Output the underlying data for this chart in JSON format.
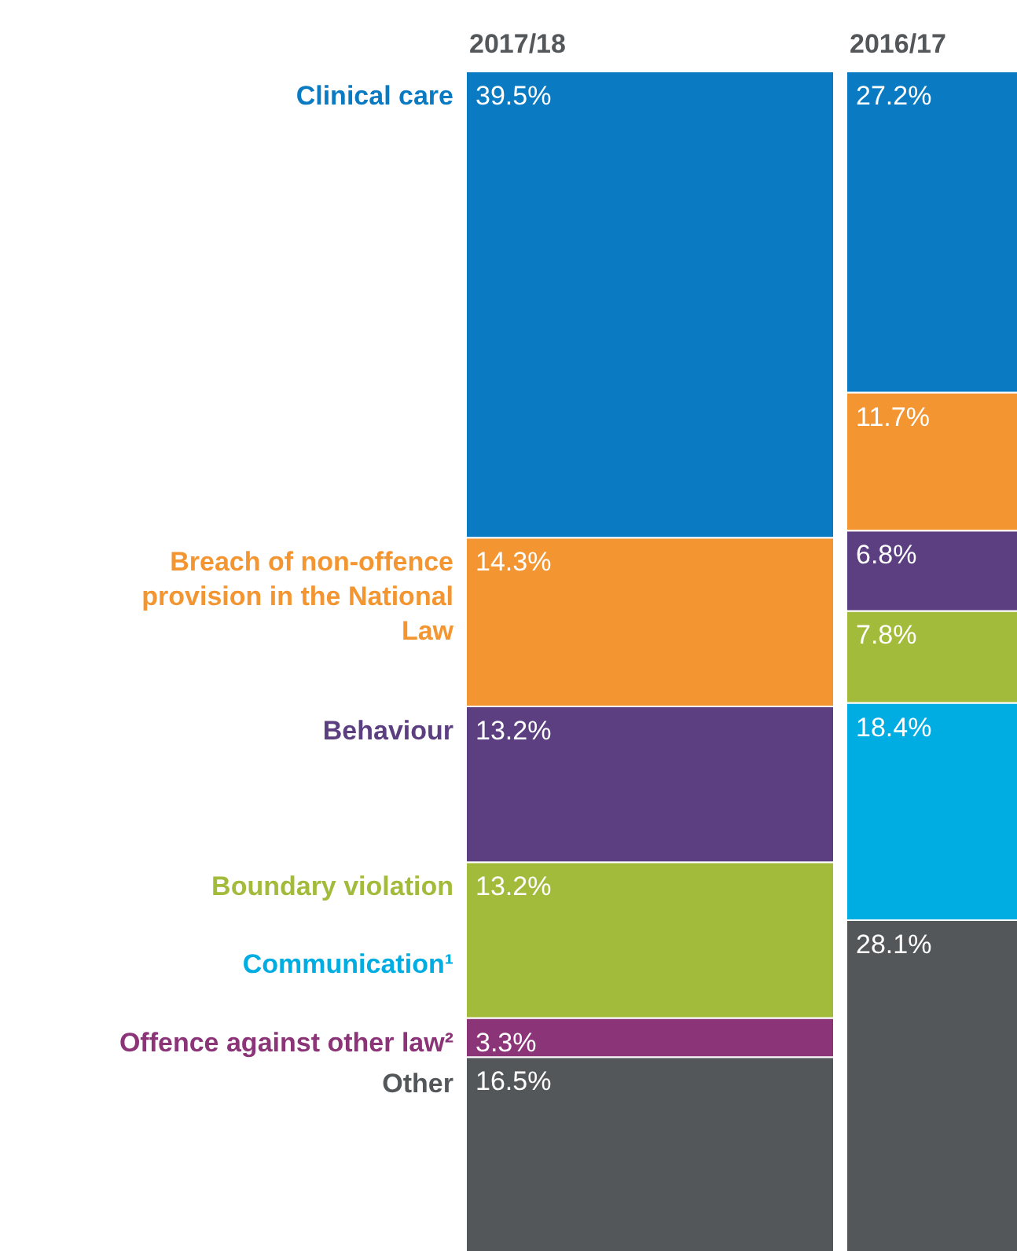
{
  "chart_data": {
    "type": "bar",
    "stacked": true,
    "categories": [
      "2017/18",
      "2016/17"
    ],
    "series": [
      {
        "name": "Other",
        "color": "#54575a",
        "values": [
          16.5,
          28.1
        ],
        "value_labels": [
          "16.5%",
          "28.1%"
        ]
      },
      {
        "name": "Offence against other law²",
        "color": "#8b3478",
        "values": [
          3.3,
          null
        ],
        "value_labels": [
          "3.3%",
          null
        ]
      },
      {
        "name": "Communication¹",
        "color": "#00ade2",
        "values": [
          null,
          18.4
        ],
        "value_labels": [
          null,
          "18.4%"
        ]
      },
      {
        "name": "Boundary violation",
        "color": "#a3bb3b",
        "values": [
          13.2,
          7.8
        ],
        "value_labels": [
          "13.2%",
          "7.8%"
        ]
      },
      {
        "name": "Behaviour",
        "color": "#5b3f80",
        "values": [
          13.2,
          6.8
        ],
        "value_labels": [
          "13.2%",
          "6.8%"
        ]
      },
      {
        "name": "Breach of non-offence provision in the National Law",
        "color": "#f39530",
        "values": [
          14.3,
          11.7
        ],
        "value_labels": [
          "14.3%",
          "11.7%"
        ]
      },
      {
        "name": "Clinical care",
        "color": "#0a7bc2",
        "values": [
          39.5,
          27.2
        ],
        "value_labels": [
          "39.5%",
          "27.2%"
        ]
      }
    ]
  }
}
